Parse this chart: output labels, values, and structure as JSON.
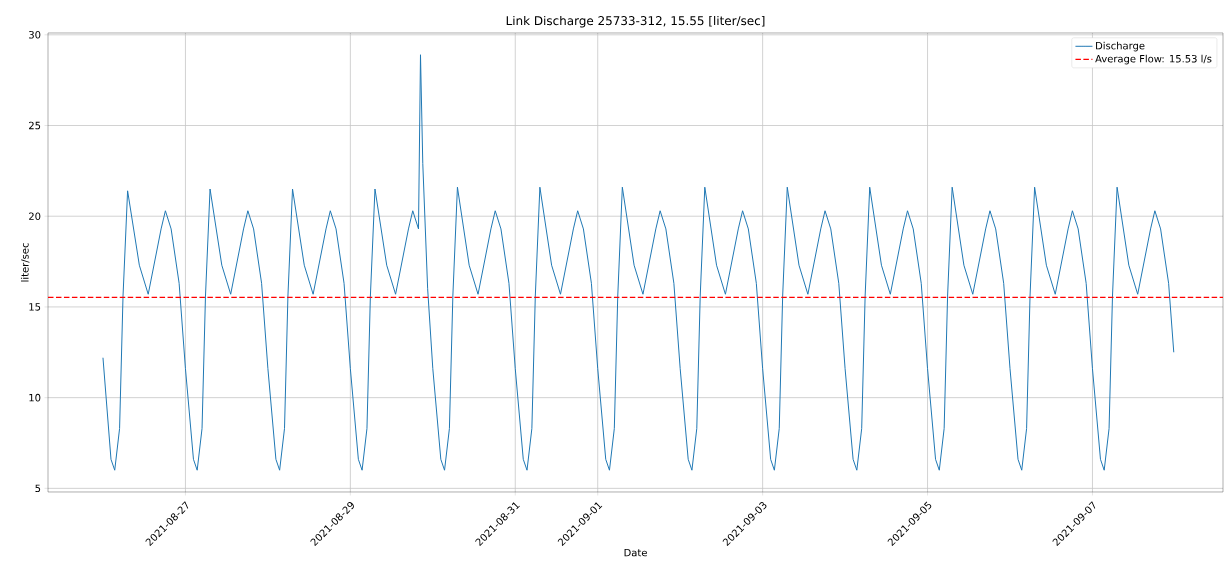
{
  "chart_data": {
    "type": "line",
    "title": "Link Discharge 25733-312, 15.55 [liter/sec]",
    "xlabel": "Date",
    "ylabel": "liter/sec",
    "xlim": [
      "2021-08-25T08:00",
      "2021-09-08T14:00"
    ],
    "xticks": [
      "2021-08-27",
      "2021-08-29",
      "2021-08-31",
      "2021-09-01",
      "2021-09-03",
      "2021-09-05",
      "2021-09-07"
    ],
    "ylim": [
      4.8,
      30.1
    ],
    "yticks": [
      5,
      10,
      15,
      20,
      25,
      30
    ],
    "grid": true,
    "legend": "top right",
    "x": [
      "2021-08-26T00:00",
      "2021-08-26T02:20",
      "2021-08-26T03:25",
      "2021-08-26T04:50",
      "2021-08-26T05:50",
      "2021-08-26T07:10",
      "2021-08-26T10:35",
      "2021-08-26T13:10",
      "2021-08-26T16:55",
      "2021-08-26T18:10",
      "2021-08-26T19:50",
      "2021-08-26T22:10",
      "2021-08-27T00:00",
      "2021-08-27T02:20",
      "2021-08-27T03:25",
      "2021-08-27T04:50",
      "2021-08-27T05:50",
      "2021-08-27T07:10",
      "2021-08-27T10:35",
      "2021-08-27T13:10",
      "2021-08-27T16:55",
      "2021-08-27T18:10",
      "2021-08-27T19:50",
      "2021-08-27T22:10",
      "2021-08-28T00:00",
      "2021-08-28T02:20",
      "2021-08-28T03:25",
      "2021-08-28T04:50",
      "2021-08-28T05:50",
      "2021-08-28T07:10",
      "2021-08-28T10:35",
      "2021-08-28T13:10",
      "2021-08-28T16:55",
      "2021-08-28T18:10",
      "2021-08-28T19:50",
      "2021-08-28T22:10",
      "2021-08-29T00:00",
      "2021-08-29T02:20",
      "2021-08-29T03:25",
      "2021-08-29T04:50",
      "2021-08-29T05:50",
      "2021-08-29T07:10",
      "2021-08-29T10:35",
      "2021-08-29T13:10",
      "2021-08-29T16:55",
      "2021-08-29T18:10",
      "2021-08-29T19:50",
      "2021-08-29T20:25",
      "2021-08-29T21:05",
      "2021-08-29T22:30",
      "2021-08-30T00:00",
      "2021-08-30T02:20",
      "2021-08-30T03:25",
      "2021-08-30T04:50",
      "2021-08-30T05:50",
      "2021-08-30T07:10",
      "2021-08-30T10:35",
      "2021-08-30T13:10",
      "2021-08-30T16:55",
      "2021-08-30T18:10",
      "2021-08-30T19:50",
      "2021-08-30T22:10",
      "2021-08-31T00:00",
      "2021-08-31T02:20",
      "2021-08-31T03:25",
      "2021-08-31T04:50",
      "2021-08-31T05:50",
      "2021-08-31T07:10",
      "2021-08-31T10:35",
      "2021-08-31T13:10",
      "2021-08-31T16:55",
      "2021-08-31T18:10",
      "2021-08-31T19:50",
      "2021-08-31T22:10",
      "2021-09-01T00:00",
      "2021-09-01T02:20",
      "2021-09-01T03:25",
      "2021-09-01T04:50",
      "2021-09-01T05:50",
      "2021-09-01T07:10",
      "2021-09-01T10:35",
      "2021-09-01T13:10",
      "2021-09-01T16:55",
      "2021-09-01T18:10",
      "2021-09-01T19:50",
      "2021-09-01T22:10",
      "2021-09-02T00:00",
      "2021-09-02T02:20",
      "2021-09-02T03:25",
      "2021-09-02T04:50",
      "2021-09-02T05:50",
      "2021-09-02T07:10",
      "2021-09-02T10:35",
      "2021-09-02T13:10",
      "2021-09-02T16:55",
      "2021-09-02T18:10",
      "2021-09-02T19:50",
      "2021-09-02T22:10",
      "2021-09-03T00:00",
      "2021-09-03T02:20",
      "2021-09-03T03:25",
      "2021-09-03T04:50",
      "2021-09-03T05:50",
      "2021-09-03T07:10",
      "2021-09-03T10:35",
      "2021-09-03T13:10",
      "2021-09-03T16:55",
      "2021-09-03T18:10",
      "2021-09-03T19:50",
      "2021-09-03T22:10",
      "2021-09-04T00:00",
      "2021-09-04T02:20",
      "2021-09-04T03:25",
      "2021-09-04T04:50",
      "2021-09-04T05:50",
      "2021-09-04T07:10",
      "2021-09-04T10:35",
      "2021-09-04T13:10",
      "2021-09-04T16:55",
      "2021-09-04T18:10",
      "2021-09-04T19:50",
      "2021-09-04T22:10",
      "2021-09-05T00:00",
      "2021-09-05T02:20",
      "2021-09-05T03:25",
      "2021-09-05T04:50",
      "2021-09-05T05:50",
      "2021-09-05T07:10",
      "2021-09-05T10:35",
      "2021-09-05T13:10",
      "2021-09-05T16:55",
      "2021-09-05T18:10",
      "2021-09-05T19:50",
      "2021-09-05T22:10",
      "2021-09-06T00:00",
      "2021-09-06T02:20",
      "2021-09-06T03:25",
      "2021-09-06T04:50",
      "2021-09-06T05:50",
      "2021-09-06T07:10",
      "2021-09-06T10:35",
      "2021-09-06T13:10",
      "2021-09-06T16:55",
      "2021-09-06T18:10",
      "2021-09-06T19:50",
      "2021-09-06T22:10",
      "2021-09-07T00:00",
      "2021-09-07T02:20",
      "2021-09-07T03:25",
      "2021-09-07T04:50",
      "2021-09-07T05:50",
      "2021-09-07T07:10",
      "2021-09-07T10:35",
      "2021-09-07T13:10",
      "2021-09-07T16:55",
      "2021-09-07T18:10",
      "2021-09-07T19:50",
      "2021-09-07T22:10",
      "2021-09-07T23:40"
    ],
    "series": [
      {
        "name": "Discharge",
        "color": "#1f77b4",
        "values": [
          12.2,
          6.6,
          6.0,
          8.3,
          15.6,
          21.4,
          17.3,
          15.7,
          19.3,
          20.3,
          19.3,
          16.3,
          11.6,
          6.6,
          6.0,
          8.3,
          15.6,
          21.5,
          17.3,
          15.7,
          19.3,
          20.3,
          19.3,
          16.3,
          11.6,
          6.6,
          6.0,
          8.3,
          15.6,
          21.5,
          17.3,
          15.7,
          19.3,
          20.3,
          19.3,
          16.3,
          11.6,
          6.6,
          6.0,
          8.3,
          15.6,
          21.5,
          17.3,
          15.7,
          19.3,
          20.3,
          19.3,
          28.9,
          22.9,
          16.0,
          11.6,
          6.6,
          6.0,
          8.3,
          15.6,
          21.6,
          17.3,
          15.7,
          19.3,
          20.3,
          19.3,
          16.3,
          11.6,
          6.6,
          6.0,
          8.3,
          15.6,
          21.6,
          17.3,
          15.7,
          19.3,
          20.3,
          19.3,
          16.3,
          11.6,
          6.6,
          6.0,
          8.3,
          15.6,
          21.6,
          17.3,
          15.7,
          19.3,
          20.3,
          19.3,
          16.3,
          11.6,
          6.6,
          6.0,
          8.3,
          15.6,
          21.6,
          17.3,
          15.7,
          19.3,
          20.3,
          19.3,
          16.3,
          11.6,
          6.6,
          6.0,
          8.3,
          15.6,
          21.6,
          17.3,
          15.7,
          19.3,
          20.3,
          19.3,
          16.3,
          11.6,
          6.6,
          6.0,
          8.3,
          15.6,
          21.6,
          17.3,
          15.7,
          19.3,
          20.3,
          19.3,
          16.3,
          11.6,
          6.6,
          6.0,
          8.3,
          15.6,
          21.6,
          17.3,
          15.7,
          19.3,
          20.3,
          19.3,
          16.3,
          11.6,
          6.6,
          6.0,
          8.3,
          15.6,
          21.6,
          17.3,
          15.7,
          19.3,
          20.3,
          19.3,
          16.3,
          11.6,
          6.6,
          6.0,
          8.3,
          15.6,
          21.6,
          17.3,
          15.7,
          19.3,
          20.3,
          19.3,
          16.3,
          12.5
        ]
      }
    ],
    "ref_lines": [
      {
        "axis": "y",
        "value": 15.53,
        "label": "Average Flow: 15.53 l/s",
        "color": "#ff0000",
        "line_style": "dashed"
      }
    ]
  }
}
